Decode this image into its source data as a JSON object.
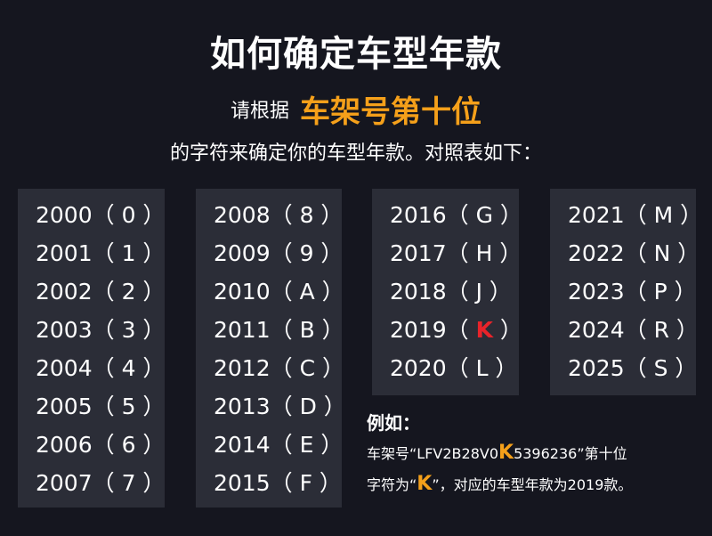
{
  "title": "如何确定车型年款",
  "subtitle_prefix": "请根据",
  "subtitle_highlight": "车架号第十位",
  "subtitle_line2": "的字符来确定你的车型年款。对照表如下：",
  "colors": {
    "highlight": "#f5a01a",
    "red": "#e8232a",
    "panel": "#2b2d37",
    "background": "#15161f"
  },
  "columns": [
    [
      {
        "year": "2000",
        "code": "0"
      },
      {
        "year": "2001",
        "code": "1"
      },
      {
        "year": "2002",
        "code": "2"
      },
      {
        "year": "2003",
        "code": "3"
      },
      {
        "year": "2004",
        "code": "4"
      },
      {
        "year": "2005",
        "code": "5"
      },
      {
        "year": "2006",
        "code": "6"
      },
      {
        "year": "2007",
        "code": "7"
      }
    ],
    [
      {
        "year": "2008",
        "code": "8"
      },
      {
        "year": "2009",
        "code": "9"
      },
      {
        "year": "2010",
        "code": "A"
      },
      {
        "year": "2011",
        "code": "B"
      },
      {
        "year": "2012",
        "code": "C"
      },
      {
        "year": "2013",
        "code": "D"
      },
      {
        "year": "2014",
        "code": "E"
      },
      {
        "year": "2015",
        "code": "F"
      }
    ],
    [
      {
        "year": "2016",
        "code": "G"
      },
      {
        "year": "2017",
        "code": "H"
      },
      {
        "year": "2018",
        "code": "J"
      },
      {
        "year": "2019",
        "code": "K",
        "highlight": true
      },
      {
        "year": "2020",
        "code": "L"
      }
    ],
    [
      {
        "year": "2021",
        "code": "M"
      },
      {
        "year": "2022",
        "code": "N"
      },
      {
        "year": "2023",
        "code": "P"
      },
      {
        "year": "2024",
        "code": "R"
      },
      {
        "year": "2025",
        "code": "S"
      }
    ]
  ],
  "example": {
    "heading": "例如：",
    "line1_prefix": "车架号“LFV2B28V0",
    "line1_highlight": "K",
    "line1_suffix": "5396236”第十位",
    "line2_prefix": "字符为“",
    "line2_highlight": "K",
    "line2_suffix": "”，对应的车型年款为2019款。"
  }
}
